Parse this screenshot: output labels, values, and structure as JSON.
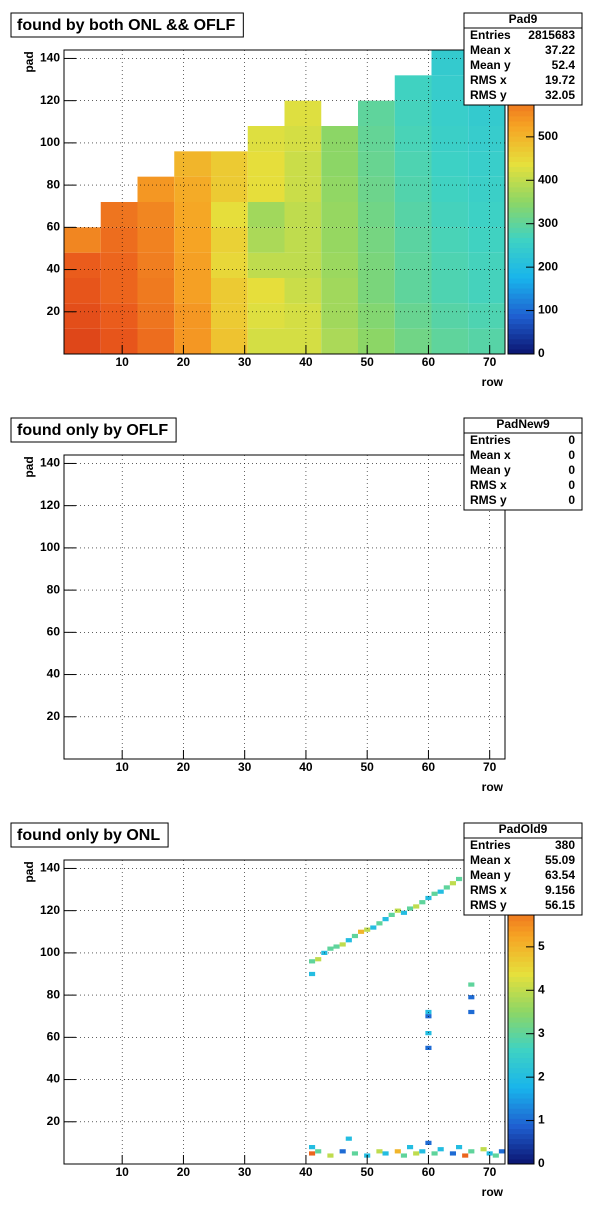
{
  "chart_data": [
    {
      "type": "heatmap",
      "title": "found by both ONL && OFLF",
      "xlabel": "row",
      "ylabel": "pad",
      "xlim": [
        0.5,
        72.5
      ],
      "ylim": [
        0,
        144
      ],
      "xticks": [
        10,
        20,
        30,
        40,
        50,
        60,
        70
      ],
      "yticks": [
        20,
        40,
        60,
        80,
        100,
        120,
        140
      ],
      "grid": true,
      "zlim": [
        0,
        700
      ],
      "zticks": [
        0,
        100,
        200,
        300,
        400,
        500,
        600
      ],
      "palette": [
        "#0b1470",
        "#1f5fd0",
        "#19b4ec",
        "#3ed2c4",
        "#8cd666",
        "#e6e03c",
        "#f6a424",
        "#ea5a1c",
        "#c81e14"
      ],
      "stats": {
        "name": "Pad9",
        "labels": [
          "Entries",
          "Mean x",
          "Mean y",
          "RMS x",
          "RMS y"
        ],
        "values": [
          2815683,
          37.22,
          52.4,
          19.72,
          32.05
        ]
      },
      "x_bins": [
        0.5,
        6.5,
        12.5,
        18.5,
        24.5,
        30.5,
        36.5,
        42.5,
        48.5,
        54.5,
        60.5,
        66.5,
        72.5
      ],
      "y_bins": [
        0,
        12,
        24,
        36,
        48,
        60,
        72,
        84,
        96,
        108,
        120,
        132,
        144
      ],
      "z": [
        [
          640,
          620,
          590,
          540,
          480,
          420,
          420,
          380,
          350,
          320,
          300,
          290
        ],
        [
          630,
          610,
          580,
          540,
          470,
          430,
          420,
          370,
          340,
          310,
          290,
          280
        ],
        [
          620,
          600,
          575,
          530,
          470,
          440,
          410,
          370,
          330,
          300,
          280,
          270
        ],
        [
          610,
          600,
          570,
          530,
          450,
          400,
          400,
          365,
          330,
          300,
          280,
          270
        ],
        [
          560,
          590,
          565,
          525,
          460,
          380,
          400,
          360,
          325,
          295,
          275,
          265
        ],
        [
          null,
          580,
          560,
          520,
          440,
          370,
          400,
          360,
          320,
          290,
          270,
          260
        ],
        [
          null,
          null,
          540,
          515,
          470,
          440,
          410,
          355,
          315,
          285,
          265,
          255
        ],
        [
          null,
          null,
          null,
          500,
          470,
          440,
          410,
          350,
          310,
          280,
          260,
          250
        ],
        [
          null,
          null,
          null,
          null,
          null,
          430,
          420,
          350,
          305,
          275,
          255,
          245
        ],
        [
          null,
          null,
          null,
          null,
          null,
          null,
          430,
          null,
          300,
          270,
          250,
          240
        ],
        [
          null,
          null,
          null,
          null,
          null,
          null,
          null,
          null,
          null,
          265,
          245,
          235
        ],
        [
          null,
          null,
          null,
          null,
          null,
          null,
          null,
          null,
          null,
          null,
          240,
          230
        ]
      ]
    },
    {
      "type": "heatmap",
      "title": "found only by OFLF",
      "xlabel": "row",
      "ylabel": "pad",
      "xlim": [
        0.5,
        72.5
      ],
      "ylim": [
        0,
        144
      ],
      "xticks": [
        10,
        20,
        30,
        40,
        50,
        60,
        70
      ],
      "yticks": [
        20,
        40,
        60,
        80,
        100,
        120,
        140
      ],
      "grid": true,
      "stats": {
        "name": "PadNew9",
        "labels": [
          "Entries",
          "Mean x",
          "Mean y",
          "RMS x",
          "RMS y"
        ],
        "values": [
          0,
          0,
          0,
          0,
          0
        ]
      }
    },
    {
      "type": "heatmap",
      "title": "found only by ONL",
      "xlabel": "row",
      "ylabel": "pad",
      "xlim": [
        0.5,
        72.5
      ],
      "ylim": [
        0,
        144
      ],
      "xticks": [
        10,
        20,
        30,
        40,
        50,
        60,
        70
      ],
      "yticks": [
        20,
        40,
        60,
        80,
        100,
        120,
        140
      ],
      "grid": true,
      "zlim": [
        0,
        7
      ],
      "zticks": [
        0,
        1,
        2,
        3,
        4,
        5,
        6
      ],
      "palette": [
        "#0b1470",
        "#1f5fd0",
        "#19b4ec",
        "#3ed2c4",
        "#8cd666",
        "#e6e03c",
        "#f6a424",
        "#ea5a1c",
        "#c81e14"
      ],
      "stats": {
        "name": "PadOld9",
        "labels": [
          "Entries",
          "Mean x",
          "Mean y",
          "RMS x",
          "RMS y"
        ],
        "values": [
          380,
          55.09,
          63.54,
          9.156,
          56.15
        ]
      },
      "points": {
        "x": [
          41,
          41,
          42,
          43,
          44,
          45,
          46,
          47,
          48,
          49,
          50,
          51,
          52,
          53,
          54,
          55,
          56,
          57,
          58,
          59,
          60,
          61,
          62,
          63,
          64,
          65,
          60,
          60,
          60,
          60,
          67,
          67,
          67,
          41,
          41,
          42,
          44,
          46,
          47,
          48,
          50,
          52,
          53,
          55,
          56,
          57,
          58,
          59,
          60,
          61,
          62,
          64,
          65,
          66,
          67,
          69,
          70,
          71,
          72
        ],
        "y": [
          90,
          96,
          97,
          100,
          102,
          103,
          104,
          106,
          108,
          110,
          111,
          112,
          114,
          116,
          118,
          120,
          119,
          121,
          122,
          124,
          126,
          128,
          129,
          131,
          133,
          135,
          72,
          70,
          62,
          55,
          85,
          79,
          72,
          8,
          5,
          6,
          4,
          6,
          12,
          5,
          4,
          6,
          5,
          6,
          4,
          8,
          5,
          6,
          10,
          5,
          7,
          5,
          8,
          4,
          6,
          7,
          5,
          4,
          6
        ],
        "z": [
          2,
          3,
          4,
          2,
          3,
          3,
          4,
          2,
          3,
          5,
          4,
          2,
          3,
          2,
          3,
          4,
          2,
          3,
          4,
          3,
          2,
          3,
          2,
          3,
          4,
          3,
          2,
          1,
          2,
          1,
          3,
          1,
          1,
          2,
          6,
          3,
          4,
          1,
          2,
          3,
          2,
          4,
          2,
          5,
          3,
          2,
          4,
          2,
          1,
          3,
          2,
          1,
          2,
          6,
          3,
          4,
          2,
          3,
          1
        ]
      }
    }
  ]
}
